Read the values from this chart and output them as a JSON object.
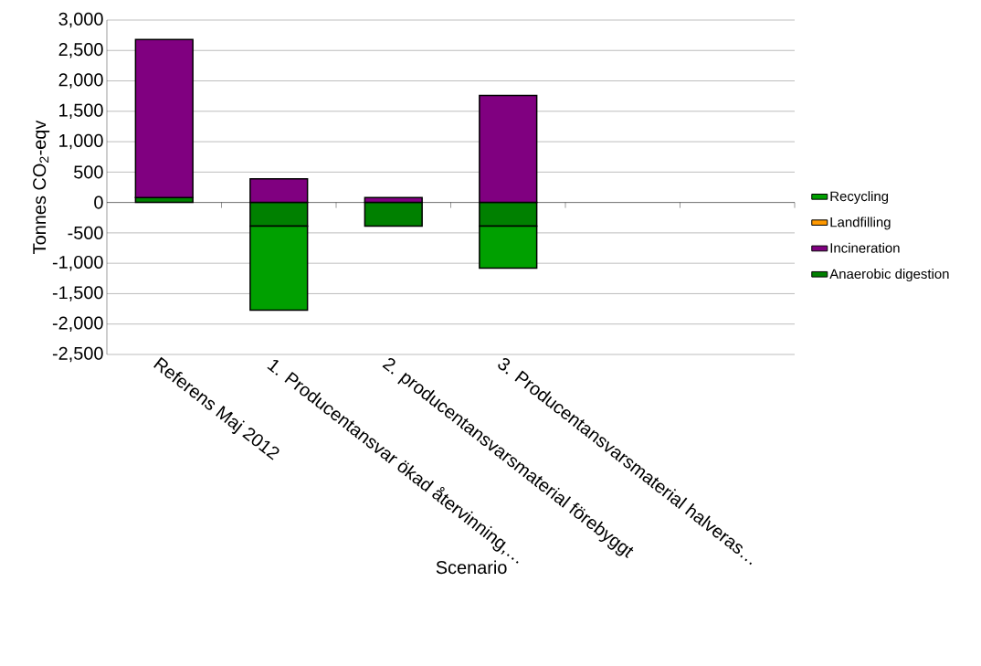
{
  "chart_data": {
    "type": "bar",
    "stacked": true,
    "ylabel": "Tonnes CO$_{2}$-eqv",
    "xlabel": "Scenario",
    "categories": [
      "Referens Maj 2012",
      "1. Producentansvar ökad återvinning,…",
      "2. producentansvarsmaterial förebyggt",
      "3. Producentansvarsmaterial halveras…",
      null,
      null
    ],
    "series": [
      {
        "name": "Anaerobic digestion",
        "color": "#008000",
        "values": [
          80,
          -390,
          -390,
          -390,
          null,
          null
        ]
      },
      {
        "name": "Incineration",
        "color": "#800080",
        "values": [
          2600,
          390,
          80,
          1760,
          null,
          null
        ]
      },
      {
        "name": "Landfilling",
        "color": "#ff9900",
        "values": [
          null,
          null,
          null,
          null,
          null,
          null
        ]
      },
      {
        "name": "Recycling",
        "color": "#00a000",
        "values": [
          null,
          -1380,
          null,
          -690,
          null,
          null
        ]
      }
    ],
    "ylim": [
      -2500,
      3000
    ],
    "yticks": [
      {
        "value": -2500,
        "label": "-2,500"
      },
      {
        "value": -2000,
        "label": "-2,000"
      },
      {
        "value": -1500,
        "label": "-1,500"
      },
      {
        "value": -1000,
        "label": "-1,000"
      },
      -500,
      0,
      500,
      {
        "value": 1000,
        "label": "1,000"
      },
      {
        "value": 1500,
        "label": "1,500"
      },
      {
        "value": 2000,
        "label": "2,000"
      },
      {
        "value": 2500,
        "label": "2,500"
      },
      {
        "value": 3000,
        "label": "3,000"
      }
    ],
    "grid": "y",
    "legend": "right"
  }
}
